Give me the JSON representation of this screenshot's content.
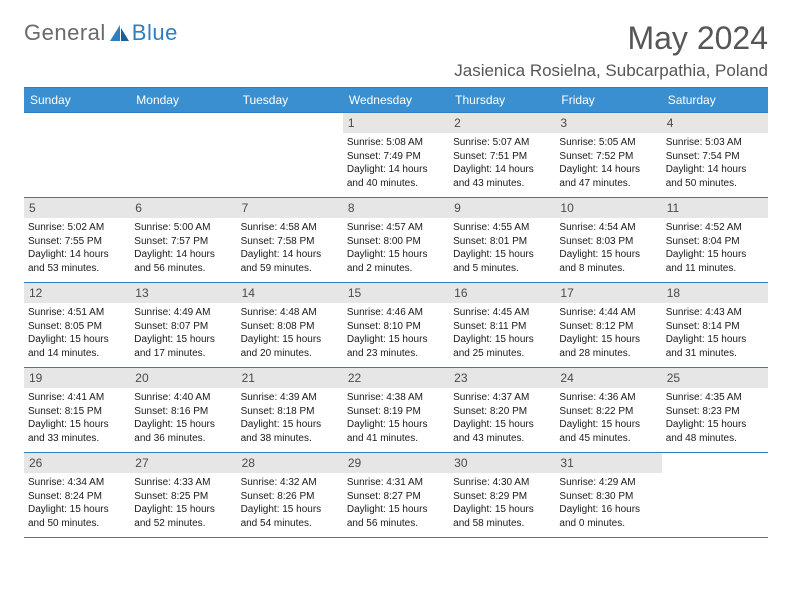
{
  "logo": {
    "text_a": "General",
    "text_b": "Blue"
  },
  "header": {
    "month_title": "May 2024",
    "location": "Jasienica Rosielna, Subcarpathia, Poland"
  },
  "colors": {
    "header_bg": "#3a8fd0",
    "rule": "#2f7fc0",
    "daynum_bg": "#e6e6e6",
    "text": "#1a1a1a",
    "muted": "#565656"
  },
  "day_headers": [
    "Sunday",
    "Monday",
    "Tuesday",
    "Wednesday",
    "Thursday",
    "Friday",
    "Saturday"
  ],
  "lead_empty": 3,
  "days": [
    {
      "n": "1",
      "sr": "5:08 AM",
      "ss": "7:49 PM",
      "dl": "14 hours and 40 minutes."
    },
    {
      "n": "2",
      "sr": "5:07 AM",
      "ss": "7:51 PM",
      "dl": "14 hours and 43 minutes."
    },
    {
      "n": "3",
      "sr": "5:05 AM",
      "ss": "7:52 PM",
      "dl": "14 hours and 47 minutes."
    },
    {
      "n": "4",
      "sr": "5:03 AM",
      "ss": "7:54 PM",
      "dl": "14 hours and 50 minutes."
    },
    {
      "n": "5",
      "sr": "5:02 AM",
      "ss": "7:55 PM",
      "dl": "14 hours and 53 minutes."
    },
    {
      "n": "6",
      "sr": "5:00 AM",
      "ss": "7:57 PM",
      "dl": "14 hours and 56 minutes."
    },
    {
      "n": "7",
      "sr": "4:58 AM",
      "ss": "7:58 PM",
      "dl": "14 hours and 59 minutes."
    },
    {
      "n": "8",
      "sr": "4:57 AM",
      "ss": "8:00 PM",
      "dl": "15 hours and 2 minutes."
    },
    {
      "n": "9",
      "sr": "4:55 AM",
      "ss": "8:01 PM",
      "dl": "15 hours and 5 minutes."
    },
    {
      "n": "10",
      "sr": "4:54 AM",
      "ss": "8:03 PM",
      "dl": "15 hours and 8 minutes."
    },
    {
      "n": "11",
      "sr": "4:52 AM",
      "ss": "8:04 PM",
      "dl": "15 hours and 11 minutes."
    },
    {
      "n": "12",
      "sr": "4:51 AM",
      "ss": "8:05 PM",
      "dl": "15 hours and 14 minutes."
    },
    {
      "n": "13",
      "sr": "4:49 AM",
      "ss": "8:07 PM",
      "dl": "15 hours and 17 minutes."
    },
    {
      "n": "14",
      "sr": "4:48 AM",
      "ss": "8:08 PM",
      "dl": "15 hours and 20 minutes."
    },
    {
      "n": "15",
      "sr": "4:46 AM",
      "ss": "8:10 PM",
      "dl": "15 hours and 23 minutes."
    },
    {
      "n": "16",
      "sr": "4:45 AM",
      "ss": "8:11 PM",
      "dl": "15 hours and 25 minutes."
    },
    {
      "n": "17",
      "sr": "4:44 AM",
      "ss": "8:12 PM",
      "dl": "15 hours and 28 minutes."
    },
    {
      "n": "18",
      "sr": "4:43 AM",
      "ss": "8:14 PM",
      "dl": "15 hours and 31 minutes."
    },
    {
      "n": "19",
      "sr": "4:41 AM",
      "ss": "8:15 PM",
      "dl": "15 hours and 33 minutes."
    },
    {
      "n": "20",
      "sr": "4:40 AM",
      "ss": "8:16 PM",
      "dl": "15 hours and 36 minutes."
    },
    {
      "n": "21",
      "sr": "4:39 AM",
      "ss": "8:18 PM",
      "dl": "15 hours and 38 minutes."
    },
    {
      "n": "22",
      "sr": "4:38 AM",
      "ss": "8:19 PM",
      "dl": "15 hours and 41 minutes."
    },
    {
      "n": "23",
      "sr": "4:37 AM",
      "ss": "8:20 PM",
      "dl": "15 hours and 43 minutes."
    },
    {
      "n": "24",
      "sr": "4:36 AM",
      "ss": "8:22 PM",
      "dl": "15 hours and 45 minutes."
    },
    {
      "n": "25",
      "sr": "4:35 AM",
      "ss": "8:23 PM",
      "dl": "15 hours and 48 minutes."
    },
    {
      "n": "26",
      "sr": "4:34 AM",
      "ss": "8:24 PM",
      "dl": "15 hours and 50 minutes."
    },
    {
      "n": "27",
      "sr": "4:33 AM",
      "ss": "8:25 PM",
      "dl": "15 hours and 52 minutes."
    },
    {
      "n": "28",
      "sr": "4:32 AM",
      "ss": "8:26 PM",
      "dl": "15 hours and 54 minutes."
    },
    {
      "n": "29",
      "sr": "4:31 AM",
      "ss": "8:27 PM",
      "dl": "15 hours and 56 minutes."
    },
    {
      "n": "30",
      "sr": "4:30 AM",
      "ss": "8:29 PM",
      "dl": "15 hours and 58 minutes."
    },
    {
      "n": "31",
      "sr": "4:29 AM",
      "ss": "8:30 PM",
      "dl": "16 hours and 0 minutes."
    }
  ],
  "labels": {
    "sunrise": "Sunrise: ",
    "sunset": "Sunset: ",
    "daylight": "Daylight: "
  }
}
